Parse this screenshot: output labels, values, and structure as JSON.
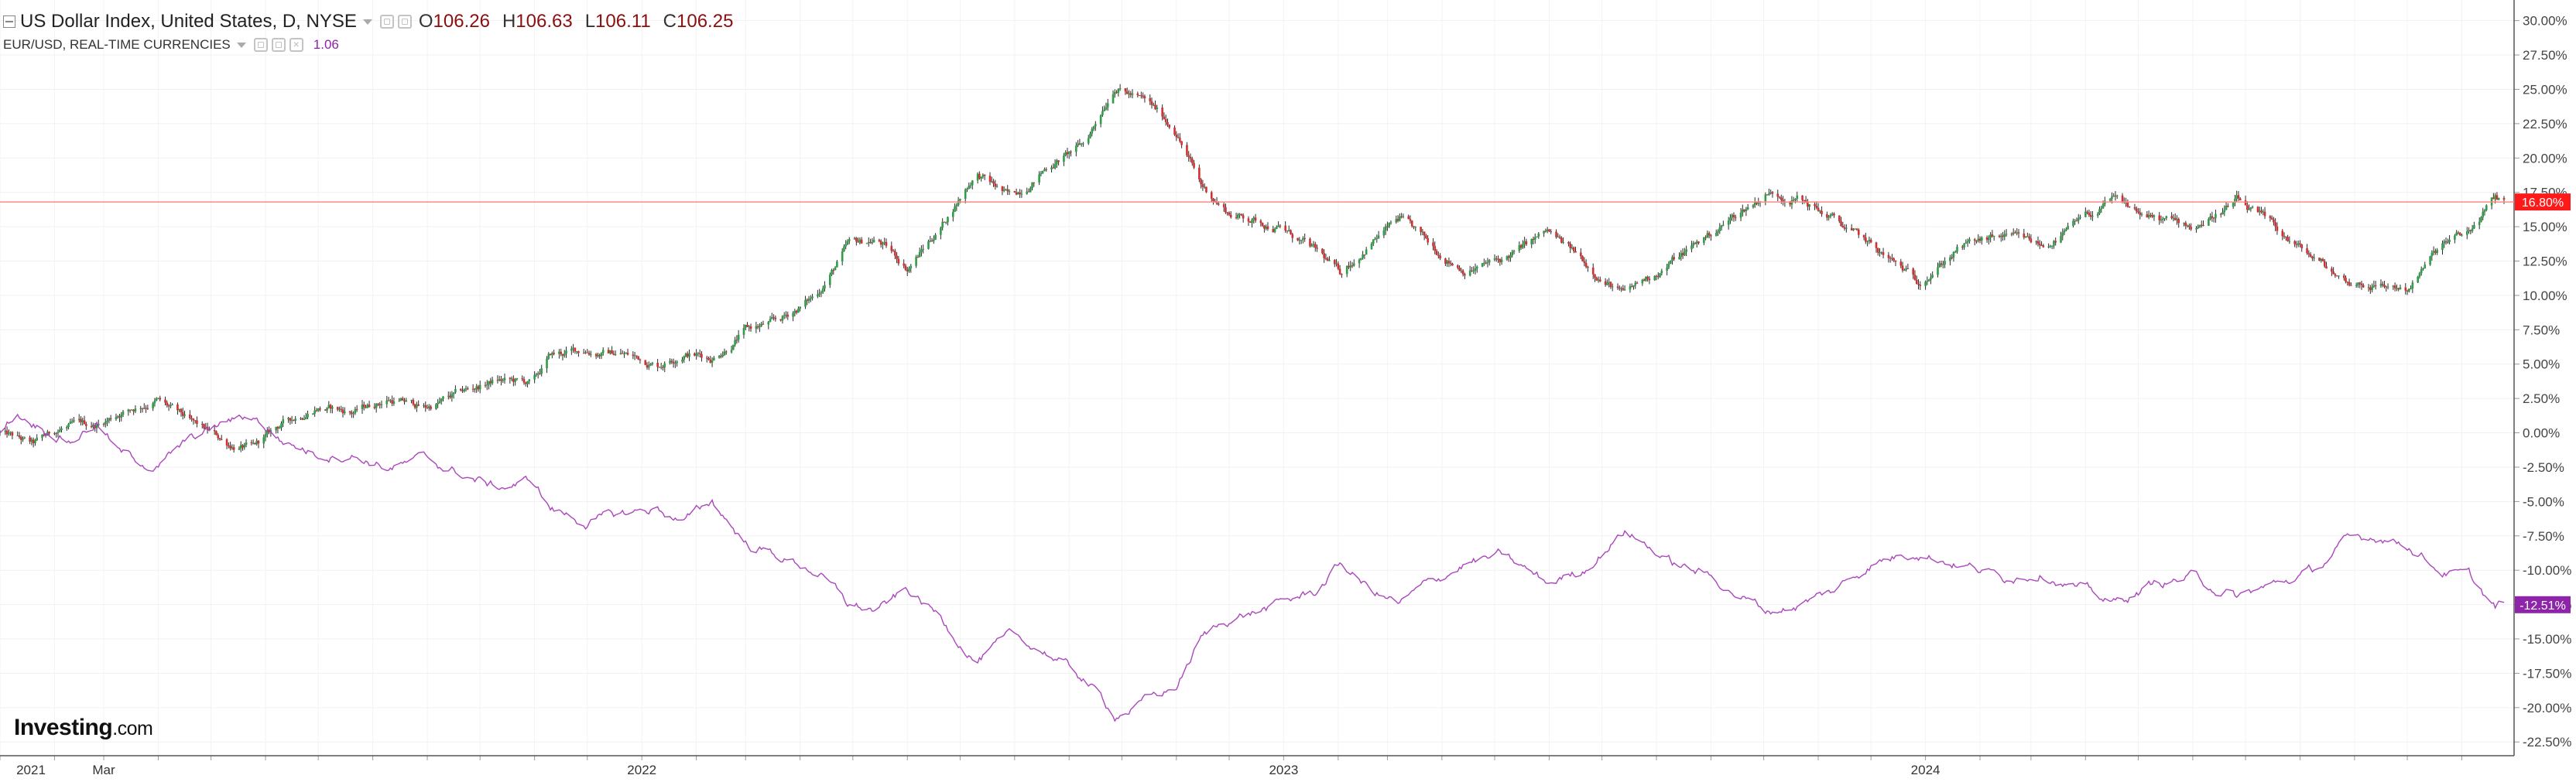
{
  "legend": {
    "main": {
      "title": "US Dollar Index, United States, D, NYSE",
      "o_label": "O",
      "o_value": "106.26",
      "h_label": "H",
      "h_value": "106.63",
      "l_label": "L",
      "l_value": "106.11",
      "c_label": "C",
      "c_value": "106.25"
    },
    "sub": {
      "title": "EUR/USD, REAL-TIME CURRENCIES",
      "value": "1.06"
    }
  },
  "logo": {
    "name": "Investing",
    "suffix": ".com"
  },
  "colors": {
    "up": "#2e9e46",
    "down": "#d32f2f",
    "wick": "#2b2b2b",
    "compare": "#ab47bc",
    "current_line": "#ff8a80",
    "current_badge": "#ff1a1a",
    "compare_badge": "#8e24aa"
  },
  "chart_data": {
    "type": "line",
    "y_axis": {
      "unit": "%",
      "ylim": [
        -23.5,
        31.5
      ],
      "ticks": [
        30,
        27.5,
        25,
        22.5,
        20,
        17.5,
        15,
        12.5,
        10,
        7.5,
        5,
        2.5,
        0,
        -2.5,
        -5,
        -7.5,
        -10,
        -12.5,
        -15,
        -17.5,
        -20,
        -22.5
      ],
      "tick_labels": [
        "30.00%",
        "27.50%",
        "25.00%",
        "22.50%",
        "20.00%",
        "17.50%",
        "15.00%",
        "12.50%",
        "10.00%",
        "7.50%",
        "5.00%",
        "2.50%",
        "0.00%",
        "-2.50%",
        "-5.00%",
        "-7.50%",
        "-10.00%",
        "-12.50%",
        "-15.00%",
        "-17.50%",
        "-20.00%",
        "-22.50%"
      ],
      "position": "right"
    },
    "x_axis": {
      "labels": [
        {
          "date": "2021-01-01",
          "text": "2021"
        },
        {
          "date": "2021-03-01",
          "text": "Mar"
        },
        {
          "date": "2022-01-01",
          "text": "2022"
        },
        {
          "date": "2023-01-01",
          "text": "2023"
        },
        {
          "date": "2024-01-01",
          "text": "2024"
        }
      ],
      "xlim": [
        "2021-01-01",
        "2024-11-25"
      ]
    },
    "grid": true,
    "series": [
      {
        "name": "US Dollar Index",
        "style": "candlestick",
        "points": [
          [
            "2021-01-01",
            0.0
          ],
          [
            "2021-01-20",
            -1.0
          ],
          [
            "2021-02-05",
            0.3
          ],
          [
            "2021-02-25",
            0.5
          ],
          [
            "2021-03-10",
            1.5
          ],
          [
            "2021-03-31",
            2.5
          ],
          [
            "2021-04-20",
            0.5
          ],
          [
            "2021-05-10",
            -0.8
          ],
          [
            "2021-05-25",
            -1.2
          ],
          [
            "2021-06-10",
            0.5
          ],
          [
            "2021-06-30",
            2.0
          ],
          [
            "2021-07-20",
            1.5
          ],
          [
            "2021-08-10",
            2.5
          ],
          [
            "2021-08-31",
            1.8
          ],
          [
            "2021-09-20",
            2.8
          ],
          [
            "2021-10-10",
            3.8
          ],
          [
            "2021-10-31",
            3.5
          ],
          [
            "2021-11-10",
            5.5
          ],
          [
            "2021-11-30",
            6.0
          ],
          [
            "2021-12-20",
            5.8
          ],
          [
            "2022-01-10",
            5.0
          ],
          [
            "2022-01-25",
            6.0
          ],
          [
            "2022-02-10",
            5.5
          ],
          [
            "2022-03-01",
            7.5
          ],
          [
            "2022-03-20",
            8.0
          ],
          [
            "2022-04-10",
            10.0
          ],
          [
            "2022-04-28",
            13.5
          ],
          [
            "2022-05-15",
            14.0
          ],
          [
            "2022-06-01",
            12.0
          ],
          [
            "2022-06-20",
            15.0
          ],
          [
            "2022-07-10",
            19.0
          ],
          [
            "2022-07-30",
            17.0
          ],
          [
            "2022-08-20",
            19.5
          ],
          [
            "2022-09-10",
            21.0
          ],
          [
            "2022-09-27",
            25.5
          ],
          [
            "2022-10-15",
            24.0
          ],
          [
            "2022-11-01",
            22.0
          ],
          [
            "2022-11-15",
            18.0
          ],
          [
            "2022-12-01",
            16.0
          ],
          [
            "2022-12-30",
            15.0
          ],
          [
            "2023-01-20",
            13.0
          ],
          [
            "2023-02-02",
            11.5
          ],
          [
            "2023-02-20",
            14.0
          ],
          [
            "2023-03-08",
            15.5
          ],
          [
            "2023-03-25",
            13.5
          ],
          [
            "2023-04-14",
            12.0
          ],
          [
            "2023-05-05",
            12.5
          ],
          [
            "2023-05-31",
            14.5
          ],
          [
            "2023-06-20",
            12.5
          ],
          [
            "2023-07-14",
            10.0
          ],
          [
            "2023-08-10",
            12.5
          ],
          [
            "2023-09-01",
            14.5
          ],
          [
            "2023-10-03",
            17.5
          ],
          [
            "2023-10-20",
            17.2
          ],
          [
            "2023-11-10",
            15.5
          ],
          [
            "2023-12-01",
            13.5
          ],
          [
            "2023-12-27",
            11.0
          ],
          [
            "2024-01-20",
            13.5
          ],
          [
            "2024-02-14",
            14.2
          ],
          [
            "2024-03-08",
            13.5
          ],
          [
            "2024-04-16",
            16.8
          ],
          [
            "2024-05-10",
            15.5
          ],
          [
            "2024-06-01",
            15.0
          ],
          [
            "2024-06-26",
            16.8
          ],
          [
            "2024-07-20",
            14.5
          ],
          [
            "2024-08-10",
            12.5
          ],
          [
            "2024-08-27",
            11.0
          ],
          [
            "2024-09-15",
            10.8
          ],
          [
            "2024-10-01",
            10.5
          ],
          [
            "2024-10-20",
            13.5
          ],
          [
            "2024-11-05",
            14.5
          ],
          [
            "2024-11-20",
            17.0
          ],
          [
            "2024-11-25",
            16.8
          ]
        ],
        "current": {
          "value": 16.8,
          "label": "16.80%"
        }
      },
      {
        "name": "EUR/USD",
        "style": "line",
        "points": [
          [
            "2021-01-01",
            0.0
          ],
          [
            "2021-01-10",
            1.5
          ],
          [
            "2021-01-25",
            0.5
          ],
          [
            "2021-02-10",
            -0.5
          ],
          [
            "2021-02-25",
            0.8
          ],
          [
            "2021-03-10",
            -1.5
          ],
          [
            "2021-03-31",
            -2.5
          ],
          [
            "2021-04-20",
            -0.5
          ],
          [
            "2021-05-10",
            0.8
          ],
          [
            "2021-05-25",
            1.2
          ],
          [
            "2021-06-10",
            -0.5
          ],
          [
            "2021-06-30",
            -1.5
          ],
          [
            "2021-07-20",
            -1.5
          ],
          [
            "2021-08-10",
            -2.5
          ],
          [
            "2021-08-31",
            -2.0
          ],
          [
            "2021-09-20",
            -3.0
          ],
          [
            "2021-10-10",
            -4.0
          ],
          [
            "2021-10-31",
            -3.5
          ],
          [
            "2021-11-10",
            -5.5
          ],
          [
            "2021-11-30",
            -6.5
          ],
          [
            "2021-12-20",
            -6.0
          ],
          [
            "2022-01-10",
            -5.5
          ],
          [
            "2022-01-25",
            -6.5
          ],
          [
            "2022-02-10",
            -5.0
          ],
          [
            "2022-03-01",
            -8.0
          ],
          [
            "2022-03-20",
            -9.0
          ],
          [
            "2022-04-10",
            -10.0
          ],
          [
            "2022-04-28",
            -12.5
          ],
          [
            "2022-05-15",
            -13.0
          ],
          [
            "2022-06-01",
            -11.5
          ],
          [
            "2022-06-20",
            -13.5
          ],
          [
            "2022-07-10",
            -16.5
          ],
          [
            "2022-07-30",
            -15.0
          ],
          [
            "2022-08-20",
            -16.0
          ],
          [
            "2022-09-10",
            -18.0
          ],
          [
            "2022-09-27",
            -20.5
          ],
          [
            "2022-10-15",
            -19.5
          ],
          [
            "2022-11-01",
            -18.5
          ],
          [
            "2022-11-15",
            -15.0
          ],
          [
            "2022-12-01",
            -13.5
          ],
          [
            "2022-12-30",
            -12.5
          ],
          [
            "2023-01-20",
            -11.5
          ],
          [
            "2023-02-02",
            -9.5
          ],
          [
            "2023-02-20",
            -11.5
          ],
          [
            "2023-03-08",
            -12.5
          ],
          [
            "2023-03-25",
            -11.0
          ],
          [
            "2023-04-14",
            -9.5
          ],
          [
            "2023-05-05",
            -9.0
          ],
          [
            "2023-05-31",
            -11.0
          ],
          [
            "2023-06-20",
            -10.0
          ],
          [
            "2023-07-14",
            -7.0
          ],
          [
            "2023-08-10",
            -9.5
          ],
          [
            "2023-09-01",
            -10.5
          ],
          [
            "2023-10-03",
            -13.0
          ],
          [
            "2023-10-20",
            -12.5
          ],
          [
            "2023-11-10",
            -11.5
          ],
          [
            "2023-12-01",
            -9.5
          ],
          [
            "2023-12-27",
            -8.5
          ],
          [
            "2024-01-20",
            -9.5
          ],
          [
            "2024-02-14",
            -10.5
          ],
          [
            "2024-03-08",
            -10.0
          ],
          [
            "2024-04-16",
            -12.5
          ],
          [
            "2024-05-10",
            -11.0
          ],
          [
            "2024-06-01",
            -10.5
          ],
          [
            "2024-06-26",
            -12.0
          ],
          [
            "2024-07-20",
            -11.0
          ],
          [
            "2024-08-10",
            -10.0
          ],
          [
            "2024-08-27",
            -8.0
          ],
          [
            "2024-09-15",
            -7.5
          ],
          [
            "2024-10-01",
            -8.0
          ],
          [
            "2024-10-20",
            -10.0
          ],
          [
            "2024-11-05",
            -10.5
          ],
          [
            "2024-11-20",
            -12.8
          ],
          [
            "2024-11-25",
            -12.5
          ]
        ],
        "current": {
          "value": -12.51,
          "label": "-12.51%"
        }
      }
    ]
  }
}
